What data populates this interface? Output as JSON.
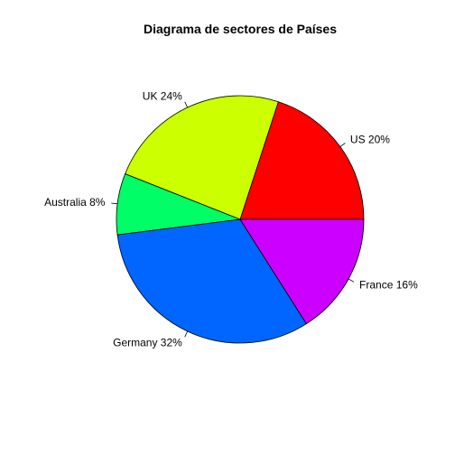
{
  "chart_data": {
    "type": "pie",
    "title": "Diagrama de sectores de Países",
    "categories": [
      "US",
      "UK",
      "Australia",
      "Germany",
      "France"
    ],
    "values": [
      20,
      24,
      8,
      32,
      16
    ],
    "labels": [
      "US 20%",
      "UK 24%",
      "Australia 8%",
      "Germany 32%",
      "France 16%"
    ],
    "colors": [
      "#FF0000",
      "#CCFF00",
      "#00FF66",
      "#0066FF",
      "#CC00FF"
    ],
    "start_angle_deg": 0,
    "direction": "counterclockwise",
    "legend": "none"
  }
}
